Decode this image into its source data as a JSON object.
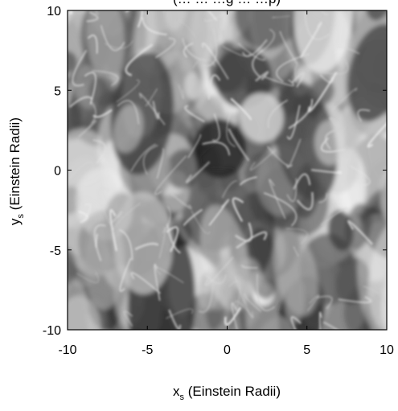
{
  "chart_data": {
    "type": "heatmap",
    "title": "(… … …g … …p)",
    "xlabel": {
      "main": "x",
      "sub": "s",
      "rest": " (Einstein Radii)"
    },
    "ylabel": {
      "main": "y",
      "sub": "s",
      "rest": " (Einstein Radii)"
    },
    "xlim": [
      -10,
      10
    ],
    "ylim": [
      -10,
      10
    ],
    "xticks": [
      -10,
      -5,
      0,
      5,
      10
    ],
    "yticks": [
      -10,
      -5,
      0,
      5,
      10
    ],
    "xtick_labels": [
      "-10",
      "-5",
      "0",
      "5",
      "10"
    ],
    "ytick_labels": [
      "-10",
      "-5",
      "0",
      "5",
      "10"
    ],
    "colormap": "grayscale",
    "grid": false,
    "legend": "none"
  }
}
